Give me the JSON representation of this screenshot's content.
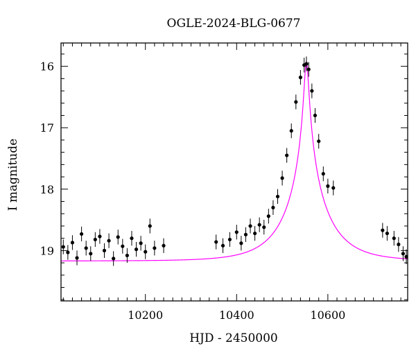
{
  "chart_data": {
    "type": "scatter",
    "title": "OGLE-2024-BLG-0677",
    "xlabel": "HJD - 2450000",
    "ylabel": "I magnitude",
    "xlim": [
      10015,
      10775
    ],
    "ylim": [
      19.82,
      15.62
    ],
    "y_inverted": true,
    "x_ticks": [
      10200,
      10400,
      10600
    ],
    "x_tick_labels": [
      "10200",
      "10400",
      "10600"
    ],
    "y_ticks": [
      16,
      17,
      18,
      19
    ],
    "y_tick_labels": [
      "16",
      "17",
      "18",
      "19"
    ],
    "grid": false,
    "legend": "none",
    "colors": {
      "points": "#000000",
      "model": "#ff00ff",
      "axes": "#000000"
    },
    "model": {
      "name": "microlensing fit",
      "baseline_mag": 19.17,
      "peak_mag": 15.92,
      "t0": 10553,
      "tE": 90
    },
    "series": [
      {
        "points": [
          {
            "x": 10020,
            "y": 18.94
          },
          {
            "x": 10030,
            "y": 19.03
          },
          {
            "x": 10040,
            "y": 18.87
          },
          {
            "x": 10050,
            "y": 19.12
          },
          {
            "x": 10060,
            "y": 18.73
          },
          {
            "x": 10070,
            "y": 18.96
          },
          {
            "x": 10080,
            "y": 19.05
          },
          {
            "x": 10090,
            "y": 18.82
          },
          {
            "x": 10100,
            "y": 18.77
          },
          {
            "x": 10110,
            "y": 19.0
          },
          {
            "x": 10120,
            "y": 18.84
          },
          {
            "x": 10130,
            "y": 19.13
          },
          {
            "x": 10140,
            "y": 18.78
          },
          {
            "x": 10150,
            "y": 18.93
          },
          {
            "x": 10160,
            "y": 19.08
          },
          {
            "x": 10170,
            "y": 18.8
          },
          {
            "x": 10180,
            "y": 18.98
          },
          {
            "x": 10190,
            "y": 18.88
          },
          {
            "x": 10200,
            "y": 19.02
          },
          {
            "x": 10210,
            "y": 18.6
          },
          {
            "x": 10220,
            "y": 18.96
          },
          {
            "x": 10240,
            "y": 18.92
          },
          {
            "x": 10355,
            "y": 18.86
          },
          {
            "x": 10370,
            "y": 18.92
          },
          {
            "x": 10385,
            "y": 18.82
          },
          {
            "x": 10400,
            "y": 18.7
          },
          {
            "x": 10410,
            "y": 18.88
          },
          {
            "x": 10420,
            "y": 18.74
          },
          {
            "x": 10430,
            "y": 18.6
          },
          {
            "x": 10440,
            "y": 18.72
          },
          {
            "x": 10450,
            "y": 18.58
          },
          {
            "x": 10460,
            "y": 18.62
          },
          {
            "x": 10470,
            "y": 18.44
          },
          {
            "x": 10480,
            "y": 18.3
          },
          {
            "x": 10490,
            "y": 18.12
          },
          {
            "x": 10500,
            "y": 17.82
          },
          {
            "x": 10510,
            "y": 17.45
          },
          {
            "x": 10520,
            "y": 17.05
          },
          {
            "x": 10530,
            "y": 16.58
          },
          {
            "x": 10540,
            "y": 16.18
          },
          {
            "x": 10548,
            "y": 15.98
          },
          {
            "x": 10553,
            "y": 15.96
          },
          {
            "x": 10558,
            "y": 16.05
          },
          {
            "x": 10565,
            "y": 16.4
          },
          {
            "x": 10572,
            "y": 16.8
          },
          {
            "x": 10580,
            "y": 17.22
          },
          {
            "x": 10590,
            "y": 17.75
          },
          {
            "x": 10600,
            "y": 17.95
          },
          {
            "x": 10612,
            "y": 17.98
          },
          {
            "x": 10720,
            "y": 18.67
          },
          {
            "x": 10730,
            "y": 18.72
          },
          {
            "x": 10745,
            "y": 18.8
          },
          {
            "x": 10755,
            "y": 18.9
          },
          {
            "x": 10765,
            "y": 19.05
          },
          {
            "x": 10772,
            "y": 19.1
          }
        ]
      }
    ]
  }
}
